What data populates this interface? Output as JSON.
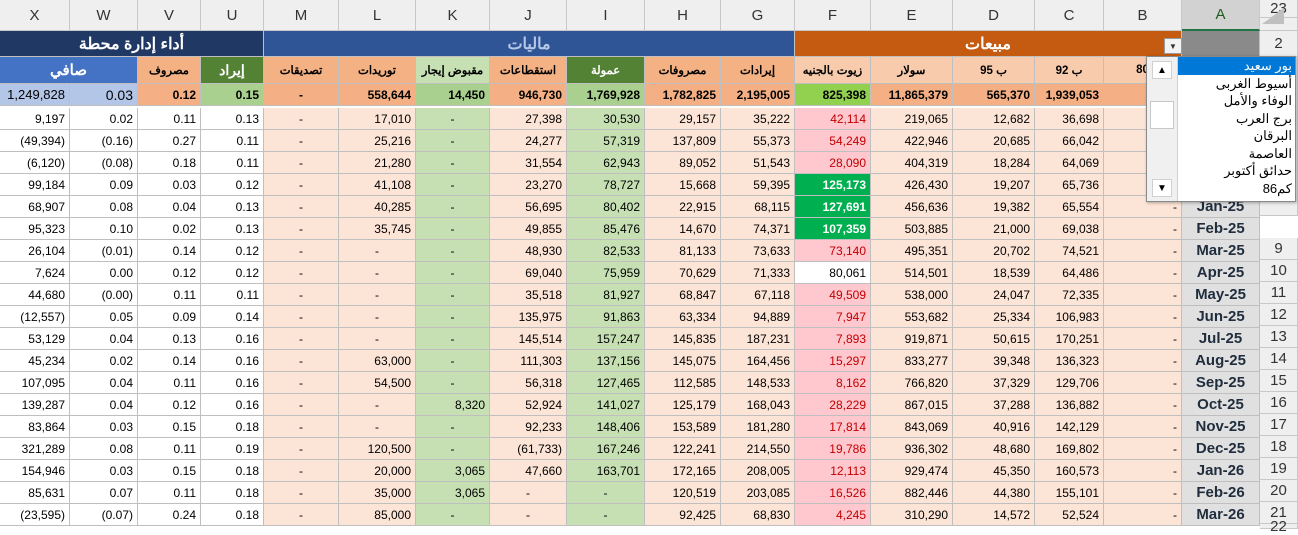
{
  "columns": [
    "X",
    "W",
    "V",
    "U",
    "M",
    "L",
    "K",
    "J",
    "I",
    "H",
    "G",
    "F",
    "E",
    "D",
    "C",
    "B",
    "A"
  ],
  "selected_column": "A",
  "row_numbers": [
    "2",
    "",
    "",
    "",
    "",
    "",
    "",
    "",
    "",
    "9",
    "10",
    "11",
    "12",
    "13",
    "14",
    "15",
    "16",
    "17",
    "18",
    "19",
    "20",
    "21",
    "22",
    "23"
  ],
  "groups": [
    {
      "label": "أداء إدارة محطة",
      "bg": "#203864",
      "color": "#ffffff"
    },
    {
      "label": "ماليات",
      "bg": "#2f5597",
      "color": "#b4c7e7"
    },
    {
      "label": "مبيعات",
      "bg": "#c55a11",
      "color": "#ffffff"
    }
  ],
  "subheaders": {
    "X_W": "صافي",
    "V": "مصروف",
    "U": "إيراد",
    "M": "تصديقات",
    "L": "توريدات",
    "K": "مقبوض إيجار",
    "J": "استقطاعات",
    "I": "عمولة",
    "H": "مصروفات",
    "G": "إيرادات",
    "F": "زيوت بالجنيه",
    "E": "سولار",
    "D": "ب 95",
    "C": "ب 92",
    "B": "80"
  },
  "totals": {
    "X": "1,249,828",
    "W": "0.03",
    "V": "0.12",
    "U": "0.15",
    "M": "-",
    "L": "558,644",
    "K": "14,450",
    "J": "946,730",
    "I": "1,769,928",
    "H": "1,782,825",
    "G": "2,195,005",
    "F": "825,398",
    "E": "11,865,379",
    "D": "565,370",
    "C": "1,939,053"
  },
  "rows": [
    {
      "X": "9,197",
      "W": "0.02",
      "V": "0.11",
      "U": "0.13",
      "M": "-",
      "L": "17,010",
      "K": "-",
      "J": "27,398",
      "I": "30,530",
      "H": "29,157",
      "G": "35,222",
      "F": "42,114",
      "f_green": false,
      "E": "219,065",
      "D": "12,682",
      "C": "36,698",
      "B": "",
      "A": ""
    },
    {
      "X": "(49,394)",
      "W": "(0.16)",
      "V": "0.27",
      "U": "0.11",
      "M": "-",
      "L": "25,216",
      "K": "-",
      "J": "24,277",
      "I": "57,319",
      "H": "137,809",
      "G": "55,373",
      "F": "54,249",
      "f_green": false,
      "E": "422,946",
      "D": "20,685",
      "C": "66,042",
      "B": "",
      "A": ""
    },
    {
      "X": "(6,120)",
      "W": "(0.08)",
      "V": "0.18",
      "U": "0.11",
      "M": "-",
      "L": "21,280",
      "K": "-",
      "J": "31,554",
      "I": "62,943",
      "H": "89,052",
      "G": "51,543",
      "F": "28,090",
      "f_green": false,
      "E": "404,319",
      "D": "18,284",
      "C": "64,069",
      "B": "",
      "A": ""
    },
    {
      "X": "99,184",
      "W": "0.09",
      "V": "0.03",
      "U": "0.12",
      "M": "-",
      "L": "41,108",
      "K": "-",
      "J": "23,270",
      "I": "78,727",
      "H": "15,668",
      "G": "59,395",
      "F": "125,173",
      "f_green": true,
      "E": "426,430",
      "D": "19,207",
      "C": "65,736",
      "B": "",
      "A": ""
    },
    {
      "X": "68,907",
      "W": "0.08",
      "V": "0.04",
      "U": "0.13",
      "M": "-",
      "L": "40,285",
      "K": "-",
      "J": "56,695",
      "I": "80,402",
      "H": "22,915",
      "G": "68,115",
      "F": "127,691",
      "f_green": true,
      "E": "456,636",
      "D": "19,382",
      "C": "65,554",
      "B": "-",
      "A": "Jan-25"
    },
    {
      "X": "95,323",
      "W": "0.10",
      "V": "0.02",
      "U": "0.13",
      "M": "-",
      "L": "35,745",
      "K": "-",
      "J": "49,855",
      "I": "85,476",
      "H": "14,670",
      "G": "74,371",
      "F": "107,359",
      "f_green": true,
      "E": "503,885",
      "D": "21,000",
      "C": "69,038",
      "B": "-",
      "A": "Feb-25"
    },
    {
      "X": "26,104",
      "W": "(0.01)",
      "V": "0.14",
      "U": "0.12",
      "M": "-",
      "L": "-",
      "K": "-",
      "J": "48,930",
      "I": "82,533",
      "H": "81,133",
      "G": "73,633",
      "F": "73,140",
      "f_green": false,
      "E": "495,351",
      "D": "20,702",
      "C": "74,521",
      "B": "-",
      "A": "Mar-25"
    },
    {
      "X": "7,624",
      "W": "0.00",
      "V": "0.12",
      "U": "0.12",
      "M": "-",
      "L": "-",
      "K": "-",
      "J": "69,040",
      "I": "75,959",
      "H": "70,629",
      "G": "71,333",
      "F": "80,061",
      "f_green": false,
      "f_white": true,
      "E": "514,501",
      "D": "18,539",
      "C": "64,486",
      "B": "-",
      "A": "Apr-25"
    },
    {
      "X": "44,680",
      "W": "(0.00)",
      "V": "0.11",
      "U": "0.11",
      "M": "-",
      "L": "-",
      "K": "-",
      "J": "35,518",
      "I": "81,927",
      "H": "68,847",
      "G": "67,118",
      "F": "49,509",
      "f_green": false,
      "E": "538,000",
      "D": "24,047",
      "C": "72,335",
      "B": "-",
      "A": "May-25"
    },
    {
      "X": "(12,557)",
      "W": "0.05",
      "V": "0.09",
      "U": "0.14",
      "M": "-",
      "L": "-",
      "K": "-",
      "J": "135,975",
      "I": "91,863",
      "H": "63,334",
      "G": "94,889",
      "F": "7,947",
      "f_green": false,
      "E": "553,682",
      "D": "25,334",
      "C": "106,983",
      "B": "-",
      "A": "Jun-25"
    },
    {
      "X": "53,129",
      "W": "0.04",
      "V": "0.13",
      "U": "0.16",
      "M": "-",
      "L": "-",
      "K": "-",
      "J": "145,514",
      "I": "157,247",
      "H": "145,835",
      "G": "187,231",
      "F": "7,893",
      "f_green": false,
      "E": "919,871",
      "D": "50,615",
      "C": "170,251",
      "B": "-",
      "A": "Jul-25"
    },
    {
      "X": "45,234",
      "W": "0.02",
      "V": "0.14",
      "U": "0.16",
      "M": "-",
      "L": "63,000",
      "K": "-",
      "J": "111,303",
      "I": "137,156",
      "H": "145,075",
      "G": "164,456",
      "F": "15,297",
      "f_green": false,
      "E": "833,277",
      "D": "39,348",
      "C": "136,323",
      "B": "-",
      "A": "Aug-25"
    },
    {
      "X": "107,095",
      "W": "0.04",
      "V": "0.11",
      "U": "0.16",
      "M": "-",
      "L": "54,500",
      "K": "-",
      "J": "56,318",
      "I": "127,465",
      "H": "112,585",
      "G": "148,533",
      "F": "8,162",
      "f_green": false,
      "E": "766,820",
      "D": "37,329",
      "C": "129,706",
      "B": "-",
      "A": "Sep-25"
    },
    {
      "X": "139,287",
      "W": "0.04",
      "V": "0.12",
      "U": "0.16",
      "M": "-",
      "L": "-",
      "K": "8,320",
      "J": "52,924",
      "I": "141,027",
      "H": "125,179",
      "G": "168,043",
      "F": "28,229",
      "f_green": false,
      "E": "867,015",
      "D": "37,288",
      "C": "136,882",
      "B": "-",
      "A": "Oct-25"
    },
    {
      "X": "83,864",
      "W": "0.03",
      "V": "0.15",
      "U": "0.18",
      "M": "-",
      "L": "-",
      "K": "-",
      "J": "92,233",
      "I": "148,406",
      "H": "153,589",
      "G": "181,280",
      "F": "17,814",
      "f_green": false,
      "E": "843,069",
      "D": "40,916",
      "C": "142,129",
      "B": "-",
      "A": "Nov-25"
    },
    {
      "X": "321,289",
      "W": "0.08",
      "V": "0.11",
      "U": "0.19",
      "M": "-",
      "L": "120,500",
      "K": "-",
      "J": "(61,733)",
      "I": "167,246",
      "H": "122,241",
      "G": "214,550",
      "F": "19,786",
      "f_green": false,
      "E": "936,302",
      "D": "48,680",
      "C": "169,802",
      "B": "-",
      "A": "Dec-25"
    },
    {
      "X": "154,946",
      "W": "0.03",
      "V": "0.15",
      "U": "0.18",
      "M": "-",
      "L": "20,000",
      "K": "3,065",
      "J": "47,660",
      "I": "163,701",
      "H": "172,165",
      "G": "208,005",
      "F": "12,113",
      "f_green": false,
      "E": "929,474",
      "D": "45,350",
      "C": "160,573",
      "B": "-",
      "A": "Jan-26"
    },
    {
      "X": "85,631",
      "W": "0.07",
      "V": "0.11",
      "U": "0.18",
      "M": "-",
      "L": "35,000",
      "K": "3,065",
      "J": "-",
      "I": "-",
      "H": "120,519",
      "G": "203,085",
      "F": "16,526",
      "f_green": false,
      "E": "882,446",
      "D": "44,380",
      "C": "155,101",
      "B": "-",
      "A": "Feb-26"
    },
    {
      "X": "(23,595)",
      "W": "(0.07)",
      "V": "0.24",
      "U": "0.18",
      "M": "-",
      "L": "85,000",
      "K": "-",
      "J": "-",
      "I": "-",
      "H": "92,425",
      "G": "68,830",
      "F": "4,245",
      "f_green": false,
      "E": "310,290",
      "D": "14,572",
      "C": "52,524",
      "B": "-",
      "A": "Mar-26"
    }
  ],
  "dropdown": {
    "items": [
      "بور سعيد",
      "أسيوط الغربى",
      "الوفاء والأمل",
      "برج العرب",
      "البرقان",
      "العاصمة",
      "حدائق أكتوبر",
      "كم86"
    ],
    "selected_index": 0,
    "up_arrow": "▲",
    "down_arrow": "▼"
  },
  "colors": {
    "salmon": "#fce4d6",
    "light_green": "#c6e0b4",
    "pink": "#ffc7ce",
    "pink_text": "#c00000",
    "bright_green": "#00b050",
    "peach_total": "#f4b084",
    "green_total": "#a9d08e",
    "blue_total": "#b4c6e7",
    "yellow_green": "#92d050",
    "sub_green": "#548235",
    "sub_orange": "#f4b183",
    "sub_blue_net": "#4472c4",
    "sub_light_orange": "#f8cbad"
  }
}
